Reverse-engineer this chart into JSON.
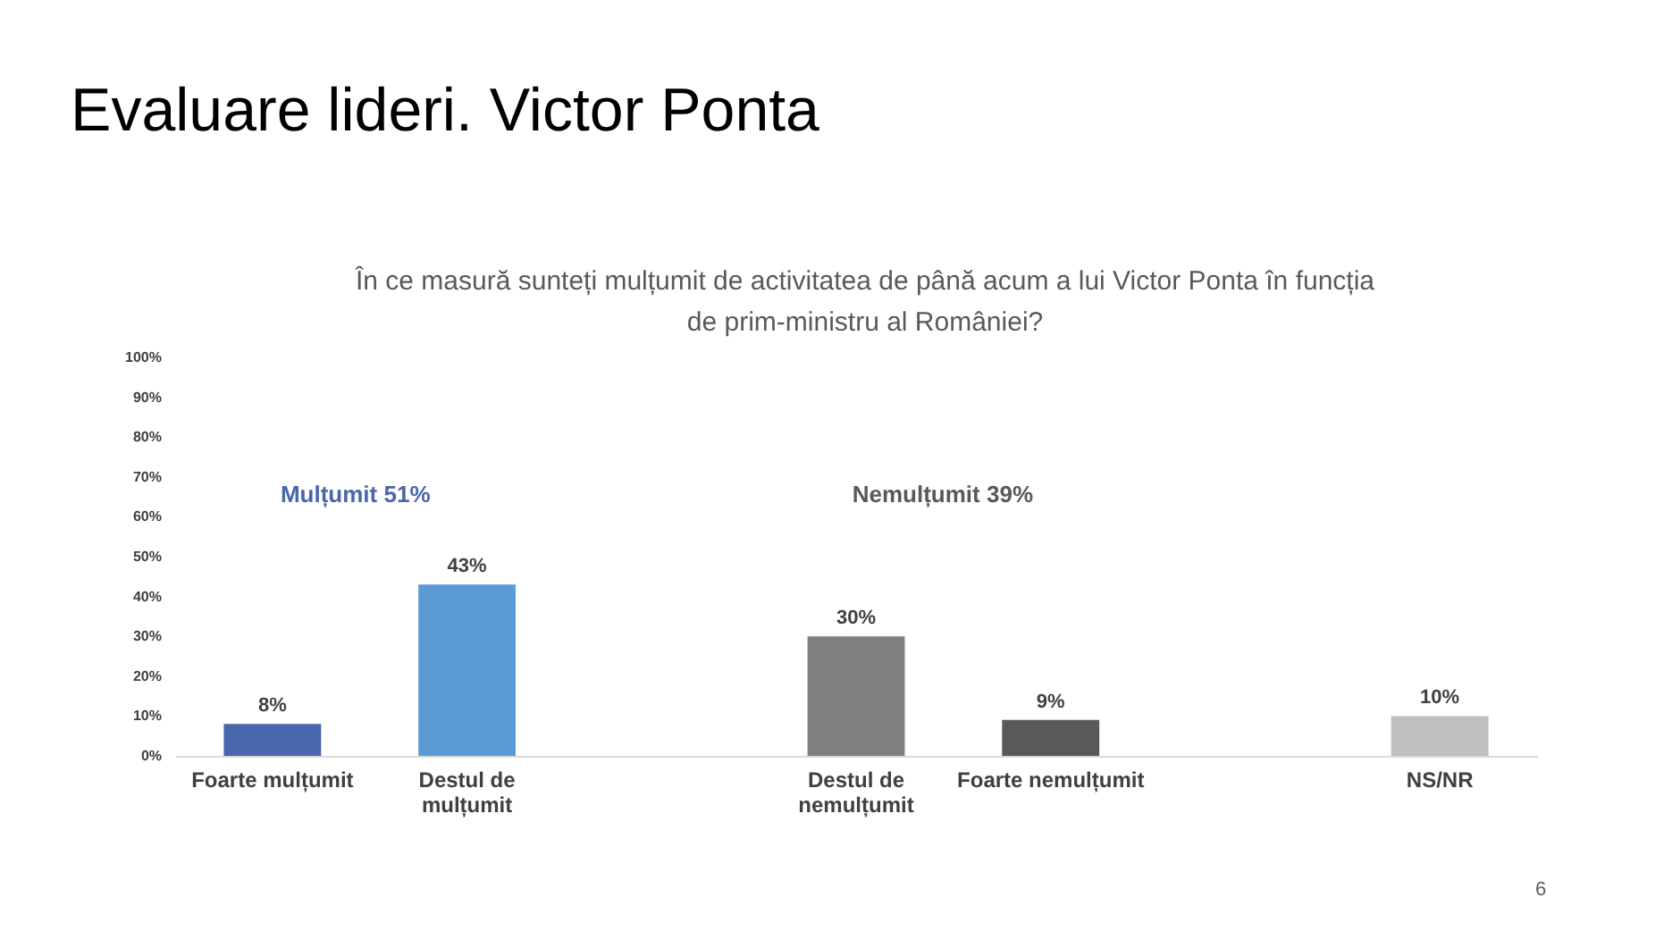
{
  "chart_data": {
    "type": "bar",
    "title": "Evaluare lideri. Victor Ponta",
    "subtitle": "În ce masură sunteți mulțumit de activitatea de până acum a lui Victor Ponta în funcția de prim-ministru al României?",
    "categories": [
      "Foarte mulțumit",
      "Destul de mulțumit",
      null,
      "Destul de nemulțumit",
      "Foarte nemulțumit",
      null,
      "NS/NR"
    ],
    "values": [
      8,
      43,
      null,
      30,
      9,
      null,
      10
    ],
    "colors": [
      "#4a66ac",
      "#5b9bd5",
      "#ffffff",
      "#7f7f7f",
      "#595959",
      "#ffffff",
      "#bfbfbf"
    ],
    "value_labels": [
      "8%",
      "43%",
      null,
      "30%",
      "9%",
      null,
      "10%"
    ],
    "ylim": [
      0,
      100
    ],
    "yticks": [
      {
        "value": 0,
        "label": "0%"
      },
      {
        "value": 10,
        "label": "10%"
      },
      {
        "value": 20,
        "label": "20%"
      },
      {
        "value": 30,
        "label": "30%"
      },
      {
        "value": 40,
        "label": "40%"
      },
      {
        "value": 50,
        "label": "50%"
      },
      {
        "value": 60,
        "label": "60%"
      },
      {
        "value": 70,
        "label": "70%"
      },
      {
        "value": 80,
        "label": "80%"
      },
      {
        "value": 90,
        "label": "90%"
      },
      {
        "value": 100,
        "label": "100%"
      }
    ],
    "annotations": [
      "Mulțumit 51%",
      "Nemulțumit 39%",
      "6"
    ],
    "grid": false,
    "legend": false
  }
}
